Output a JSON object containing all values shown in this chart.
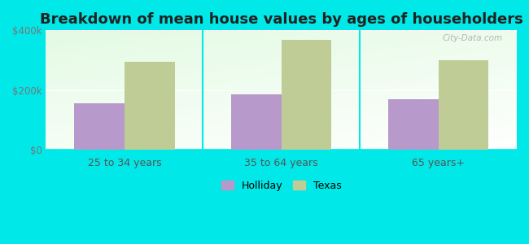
{
  "title": "Breakdown of mean house values by ages of householders",
  "categories": [
    "25 to 34 years",
    "35 to 64 years",
    "65 years+"
  ],
  "holliday_values": [
    155000,
    185000,
    168000
  ],
  "texas_values": [
    295000,
    368000,
    300000
  ],
  "holliday_color": "#b899cc",
  "texas_color": "#c0cc96",
  "background_color": "#00e8e8",
  "ylim": [
    0,
    400000
  ],
  "yticks": [
    0,
    200000,
    400000
  ],
  "ytick_labels": [
    "$0",
    "$200k",
    "$400k"
  ],
  "bar_width": 0.32,
  "title_fontsize": 13,
  "legend_labels": [
    "Holliday",
    "Texas"
  ],
  "watermark": "City-Data.com"
}
